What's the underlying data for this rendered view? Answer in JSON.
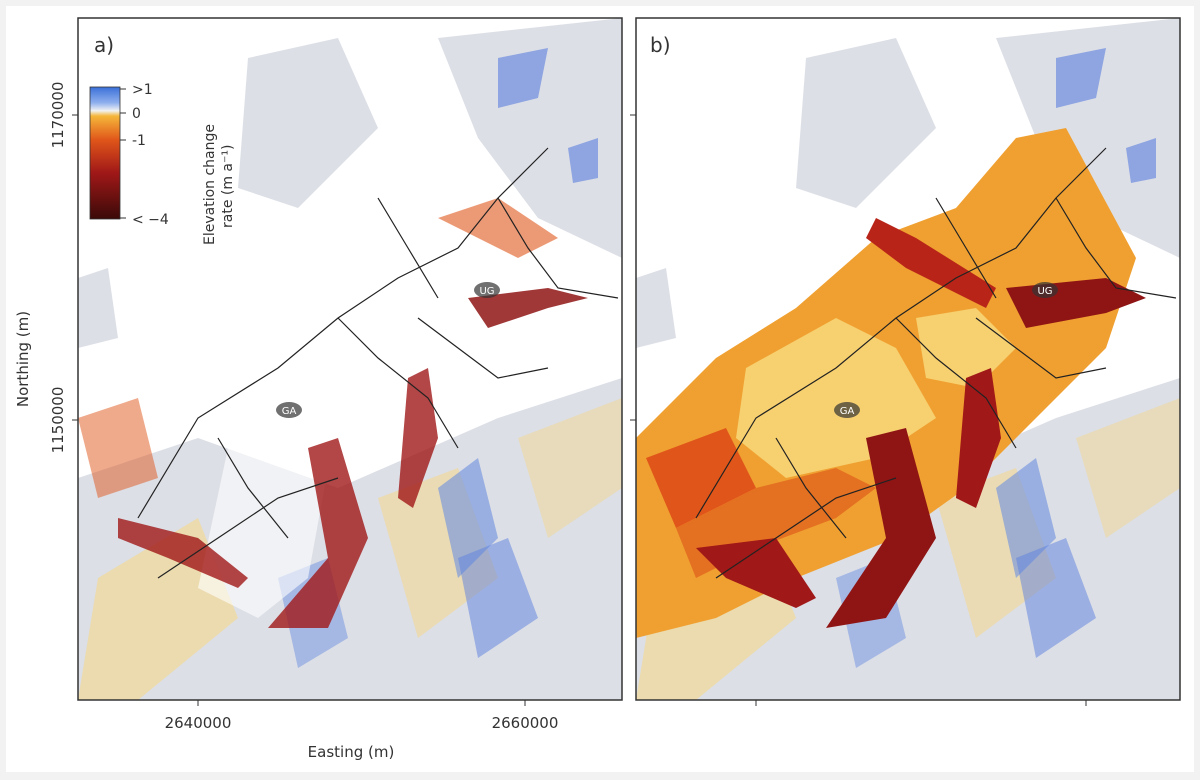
{
  "figure": {
    "panels": [
      {
        "label": "a)",
        "glacier_labels": [
          "UG",
          "GA"
        ]
      },
      {
        "label": "b)",
        "glacier_labels": [
          "UG",
          "GA"
        ]
      }
    ],
    "y_axis": {
      "label": "Northing (m)",
      "ticks": [
        "1170000",
        "1150000"
      ]
    },
    "x_axis": {
      "label": "Easting (m)",
      "ticks": [
        "2640000",
        "2660000"
      ]
    },
    "colorbar": {
      "title_line1": "Elevation change",
      "title_line2": "rate (m a⁻¹)",
      "ticks": [
        ">1",
        "0",
        "-1",
        "< −4"
      ],
      "colors": [
        "#3a6fd8",
        "#f2f2f2",
        "#f5b73a",
        "#e0561a",
        "#a01818",
        "#3a0a08"
      ]
    }
  }
}
